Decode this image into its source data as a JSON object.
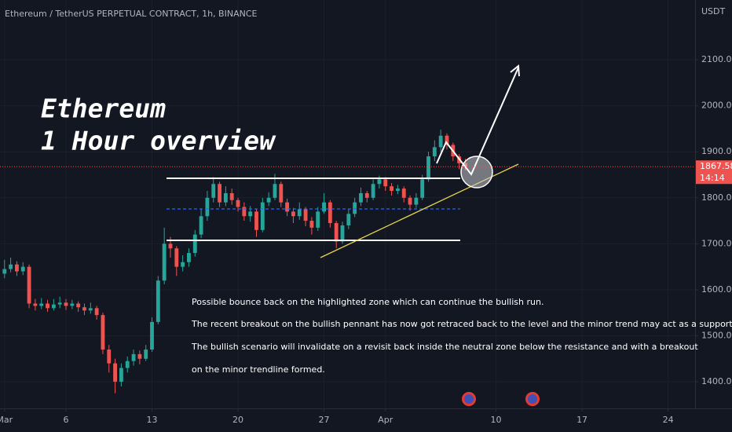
{
  "chart_data": {
    "type": "candlestick",
    "header": "Ethereum / TetherUS PERPETUAL CONTRACT, 1h, BINANCE",
    "currency": "USDT",
    "title_lines": [
      "Ethereum",
      "1 Hour overview"
    ],
    "annotation": [
      "Possible bounce back on the highlighted zone which can continue the bullish run.",
      "The recent breakout on the bullish pennant has now got retraced back to the level and the minor trend may act as a support.",
      "The bullish scenario will invalidate on a revisit back inside the neutral zone below the resistance and with a breakout",
      "on the minor trendline formed."
    ],
    "countdown": "14:14",
    "up_color": "#26a69a",
    "down_color": "#ef5350",
    "grid": true,
    "xlim": [
      0.63,
      57.2
    ],
    "xticks": [
      {
        "value": 1,
        "label": "Mar"
      },
      6,
      13,
      20,
      27,
      {
        "value": 32,
        "label": "Apr"
      },
      {
        "value": 41,
        "label": "10"
      },
      {
        "value": 48,
        "label": "17"
      },
      {
        "value": 55,
        "label": "24"
      }
    ],
    "ylim": [
      1342,
      2230
    ],
    "yticks": [
      {
        "value": 1400,
        "label": "1400.00"
      },
      {
        "value": 1500,
        "label": "1500.00"
      },
      {
        "value": 1600,
        "label": "1600.00"
      },
      {
        "value": 1700,
        "label": "1700.00"
      },
      {
        "value": 1800,
        "label": "1800.00"
      },
      {
        "value": 1900,
        "label": "1900.00"
      },
      {
        "value": 2000,
        "label": "2000.00"
      },
      {
        "value": 2100,
        "label": "2100.00"
      }
    ],
    "x": [
      1,
      1.5,
      2,
      2.5,
      3,
      3.5,
      4,
      4.5,
      5,
      5.5,
      6,
      6.5,
      7,
      7.5,
      8,
      8.5,
      9,
      9.5,
      10,
      10.5,
      11,
      11.5,
      12,
      12.5,
      13,
      13.5,
      14,
      14.5,
      15,
      15.5,
      16,
      16.5,
      17,
      17.5,
      18,
      18.5,
      19,
      19.5,
      20,
      20.5,
      21,
      21.5,
      22,
      22.5,
      23,
      23.5,
      24,
      24.5,
      25,
      25.5,
      26,
      26.5,
      27,
      27.5,
      28,
      28.5,
      29,
      29.5,
      30,
      30.5,
      31,
      31.5,
      32,
      32.5,
      33,
      33.5,
      34,
      34.5,
      35,
      35.5,
      36,
      36.5,
      37,
      37.5,
      38,
      38.5
    ],
    "open": [
      1635,
      1645,
      1655,
      1640,
      1650,
      1570,
      1565,
      1570,
      1560,
      1568,
      1572,
      1565,
      1570,
      1562,
      1555,
      1560,
      1545,
      1470,
      1440,
      1400,
      1430,
      1445,
      1460,
      1450,
      1470,
      1530,
      1620,
      1700,
      1690,
      1650,
      1660,
      1680,
      1720,
      1760,
      1800,
      1830,
      1790,
      1810,
      1795,
      1780,
      1760,
      1770,
      1730,
      1790,
      1800,
      1830,
      1790,
      1770,
      1760,
      1775,
      1750,
      1735,
      1770,
      1790,
      1745,
      1705,
      1740,
      1765,
      1790,
      1810,
      1800,
      1830,
      1840,
      1825,
      1815,
      1820,
      1800,
      1785,
      1800,
      1840,
      1890,
      1910,
      1935,
      1915,
      1890,
      1875
    ],
    "high": [
      1665,
      1670,
      1662,
      1660,
      1655,
      1580,
      1582,
      1578,
      1580,
      1585,
      1580,
      1578,
      1575,
      1570,
      1572,
      1565,
      1550,
      1480,
      1450,
      1440,
      1455,
      1470,
      1468,
      1480,
      1540,
      1630,
      1735,
      1715,
      1695,
      1675,
      1690,
      1730,
      1775,
      1815,
      1845,
      1835,
      1825,
      1820,
      1800,
      1790,
      1782,
      1775,
      1800,
      1812,
      1852,
      1835,
      1798,
      1778,
      1790,
      1780,
      1758,
      1780,
      1810,
      1795,
      1750,
      1748,
      1775,
      1800,
      1822,
      1815,
      1840,
      1848,
      1845,
      1832,
      1828,
      1825,
      1805,
      1810,
      1850,
      1900,
      1925,
      1948,
      1940,
      1920,
      1895,
      1885
    ],
    "low": [
      1625,
      1638,
      1630,
      1632,
      1560,
      1555,
      1558,
      1552,
      1555,
      1560,
      1556,
      1558,
      1552,
      1545,
      1548,
      1535,
      1460,
      1420,
      1375,
      1390,
      1420,
      1435,
      1438,
      1445,
      1465,
      1525,
      1612,
      1670,
      1630,
      1640,
      1650,
      1672,
      1712,
      1750,
      1790,
      1780,
      1782,
      1785,
      1770,
      1750,
      1748,
      1715,
      1725,
      1782,
      1795,
      1780,
      1760,
      1745,
      1752,
      1738,
      1720,
      1728,
      1765,
      1735,
      1690,
      1700,
      1732,
      1758,
      1782,
      1790,
      1795,
      1820,
      1815,
      1805,
      1808,
      1790,
      1772,
      1778,
      1795,
      1835,
      1880,
      1900,
      1905,
      1880,
      1862,
      1860
    ],
    "close": [
      1645,
      1655,
      1640,
      1650,
      1570,
      1565,
      1570,
      1560,
      1568,
      1572,
      1565,
      1570,
      1562,
      1555,
      1560,
      1545,
      1470,
      1440,
      1400,
      1430,
      1445,
      1460,
      1450,
      1470,
      1530,
      1620,
      1700,
      1690,
      1650,
      1660,
      1680,
      1720,
      1760,
      1800,
      1830,
      1790,
      1810,
      1795,
      1780,
      1760,
      1770,
      1730,
      1790,
      1800,
      1830,
      1790,
      1770,
      1760,
      1775,
      1750,
      1735,
      1770,
      1790,
      1745,
      1705,
      1740,
      1765,
      1790,
      1810,
      1800,
      1830,
      1840,
      1825,
      1815,
      1820,
      1800,
      1785,
      1800,
      1840,
      1890,
      1910,
      1935,
      1915,
      1890,
      1875,
      1867.58
    ]
  }
}
